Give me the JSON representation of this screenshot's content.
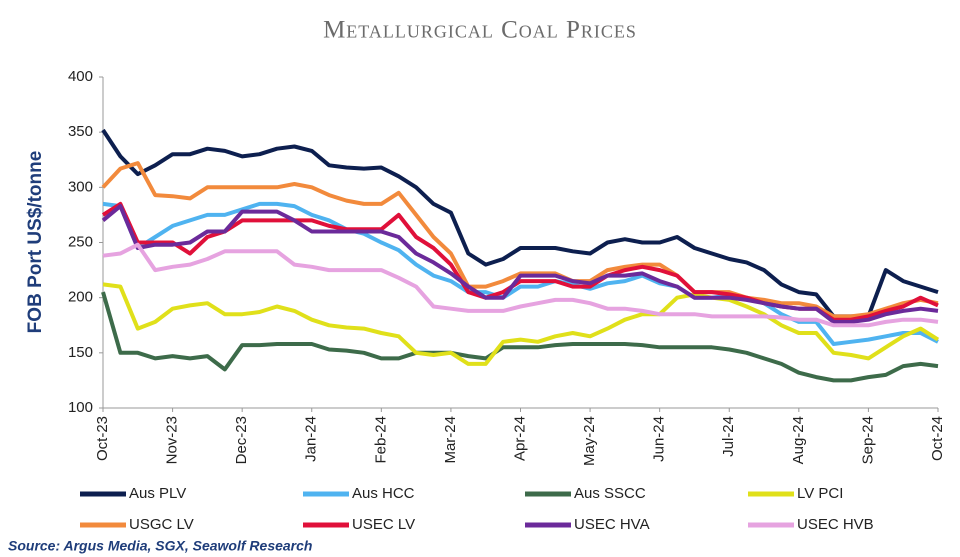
{
  "chart_data": {
    "type": "line",
    "title": "Metallurgical Coal Prices",
    "y_label": "FOB Port US$/tonne",
    "source": "Source: Argus Media, SGX, Seawolf Research",
    "categories": [
      "Oct-23",
      null,
      null,
      null,
      "Nov-23",
      null,
      null,
      null,
      "Dec-23",
      null,
      null,
      null,
      "Jan-24",
      null,
      null,
      null,
      "Feb-24",
      null,
      null,
      null,
      "Mar-24",
      null,
      null,
      null,
      "Apr-24",
      null,
      null,
      null,
      "May-24",
      null,
      null,
      null,
      "Jun-24",
      null,
      null,
      null,
      "Jul-24",
      null,
      null,
      null,
      "Aug-24",
      null,
      null,
      null,
      "Sep-24",
      null,
      null,
      null,
      "Oct-24"
    ],
    "ylim": [
      100,
      400
    ],
    "yticks": [
      100,
      150,
      200,
      250,
      300,
      350,
      400
    ],
    "grid": false,
    "series": [
      {
        "name": "Aus PLV",
        "color": "#0d1f4f",
        "values": [
          352,
          328,
          312,
          320,
          330,
          330,
          335,
          333,
          328,
          330,
          335,
          337,
          333,
          320,
          318,
          317,
          318,
          310,
          300,
          285,
          277,
          240,
          230,
          235,
          245,
          245,
          245,
          242,
          240,
          250,
          253,
          250,
          250,
          255,
          245,
          240,
          235,
          232,
          225,
          212,
          205,
          203,
          183,
          183,
          183,
          225,
          215,
          210,
          205
        ]
      },
      {
        "name": "Aus HCC",
        "color": "#4fb3f0",
        "values": [
          285,
          283,
          245,
          255,
          265,
          270,
          275,
          275,
          280,
          285,
          285,
          283,
          275,
          270,
          262,
          258,
          250,
          243,
          230,
          220,
          215,
          205,
          205,
          200,
          210,
          210,
          215,
          212,
          208,
          213,
          215,
          220,
          213,
          210,
          200,
          200,
          202,
          200,
          195,
          185,
          178,
          178,
          158,
          160,
          162,
          165,
          168,
          168,
          160
        ]
      },
      {
        "name": "Aus SSCC",
        "color": "#3d6b4a",
        "values": [
          205,
          150,
          150,
          145,
          147,
          145,
          147,
          135,
          157,
          157,
          158,
          158,
          158,
          153,
          152,
          150,
          145,
          145,
          150,
          150,
          150,
          147,
          145,
          155,
          155,
          155,
          157,
          158,
          158,
          158,
          158,
          157,
          155,
          155,
          155,
          155,
          153,
          150,
          145,
          140,
          132,
          128,
          125,
          125,
          128,
          130,
          138,
          140,
          138
        ]
      },
      {
        "name": "LV PCI",
        "color": "#e0e01a",
        "values": [
          212,
          210,
          172,
          178,
          190,
          193,
          195,
          185,
          185,
          187,
          192,
          188,
          180,
          175,
          173,
          172,
          168,
          165,
          150,
          148,
          150,
          140,
          140,
          160,
          162,
          160,
          165,
          168,
          165,
          172,
          180,
          185,
          185,
          200,
          203,
          200,
          198,
          192,
          185,
          175,
          168,
          168,
          150,
          148,
          145,
          155,
          165,
          172,
          162
        ]
      },
      {
        "name": "USGC LV",
        "color": "#f28a3c",
        "values": [
          300,
          317,
          322,
          293,
          292,
          290,
          300,
          300,
          300,
          300,
          300,
          303,
          300,
          293,
          288,
          285,
          285,
          295,
          275,
          255,
          240,
          210,
          210,
          215,
          222,
          222,
          222,
          215,
          215,
          225,
          228,
          230,
          230,
          220,
          205,
          205,
          205,
          200,
          198,
          195,
          195,
          192,
          183,
          183,
          185,
          190,
          195,
          198,
          195
        ]
      },
      {
        "name": "USEC LV",
        "color": "#e0103a",
        "values": [
          275,
          285,
          250,
          250,
          250,
          240,
          255,
          260,
          270,
          270,
          270,
          270,
          270,
          265,
          262,
          262,
          262,
          275,
          255,
          245,
          230,
          205,
          200,
          205,
          215,
          215,
          215,
          210,
          210,
          220,
          225,
          228,
          225,
          220,
          205,
          205,
          203,
          200,
          195,
          192,
          190,
          190,
          180,
          180,
          183,
          188,
          192,
          200,
          193
        ]
      },
      {
        "name": "USEC HVA",
        "color": "#6b2a9a",
        "values": [
          270,
          283,
          245,
          248,
          248,
          250,
          260,
          260,
          278,
          278,
          278,
          270,
          260,
          260,
          260,
          260,
          260,
          255,
          240,
          232,
          222,
          210,
          200,
          200,
          220,
          220,
          220,
          215,
          213,
          220,
          220,
          222,
          215,
          210,
          200,
          200,
          200,
          198,
          195,
          192,
          190,
          190,
          178,
          178,
          180,
          185,
          188,
          190,
          188
        ]
      },
      {
        "name": "USEC HVB",
        "color": "#e6a3e0",
        "values": [
          238,
          240,
          248,
          225,
          228,
          230,
          235,
          242,
          242,
          242,
          242,
          230,
          228,
          225,
          225,
          225,
          225,
          218,
          210,
          192,
          190,
          188,
          188,
          188,
          192,
          195,
          198,
          198,
          195,
          190,
          190,
          188,
          185,
          185,
          185,
          183,
          183,
          183,
          183,
          182,
          180,
          180,
          175,
          175,
          175,
          178,
          180,
          180,
          178
        ]
      }
    ]
  }
}
